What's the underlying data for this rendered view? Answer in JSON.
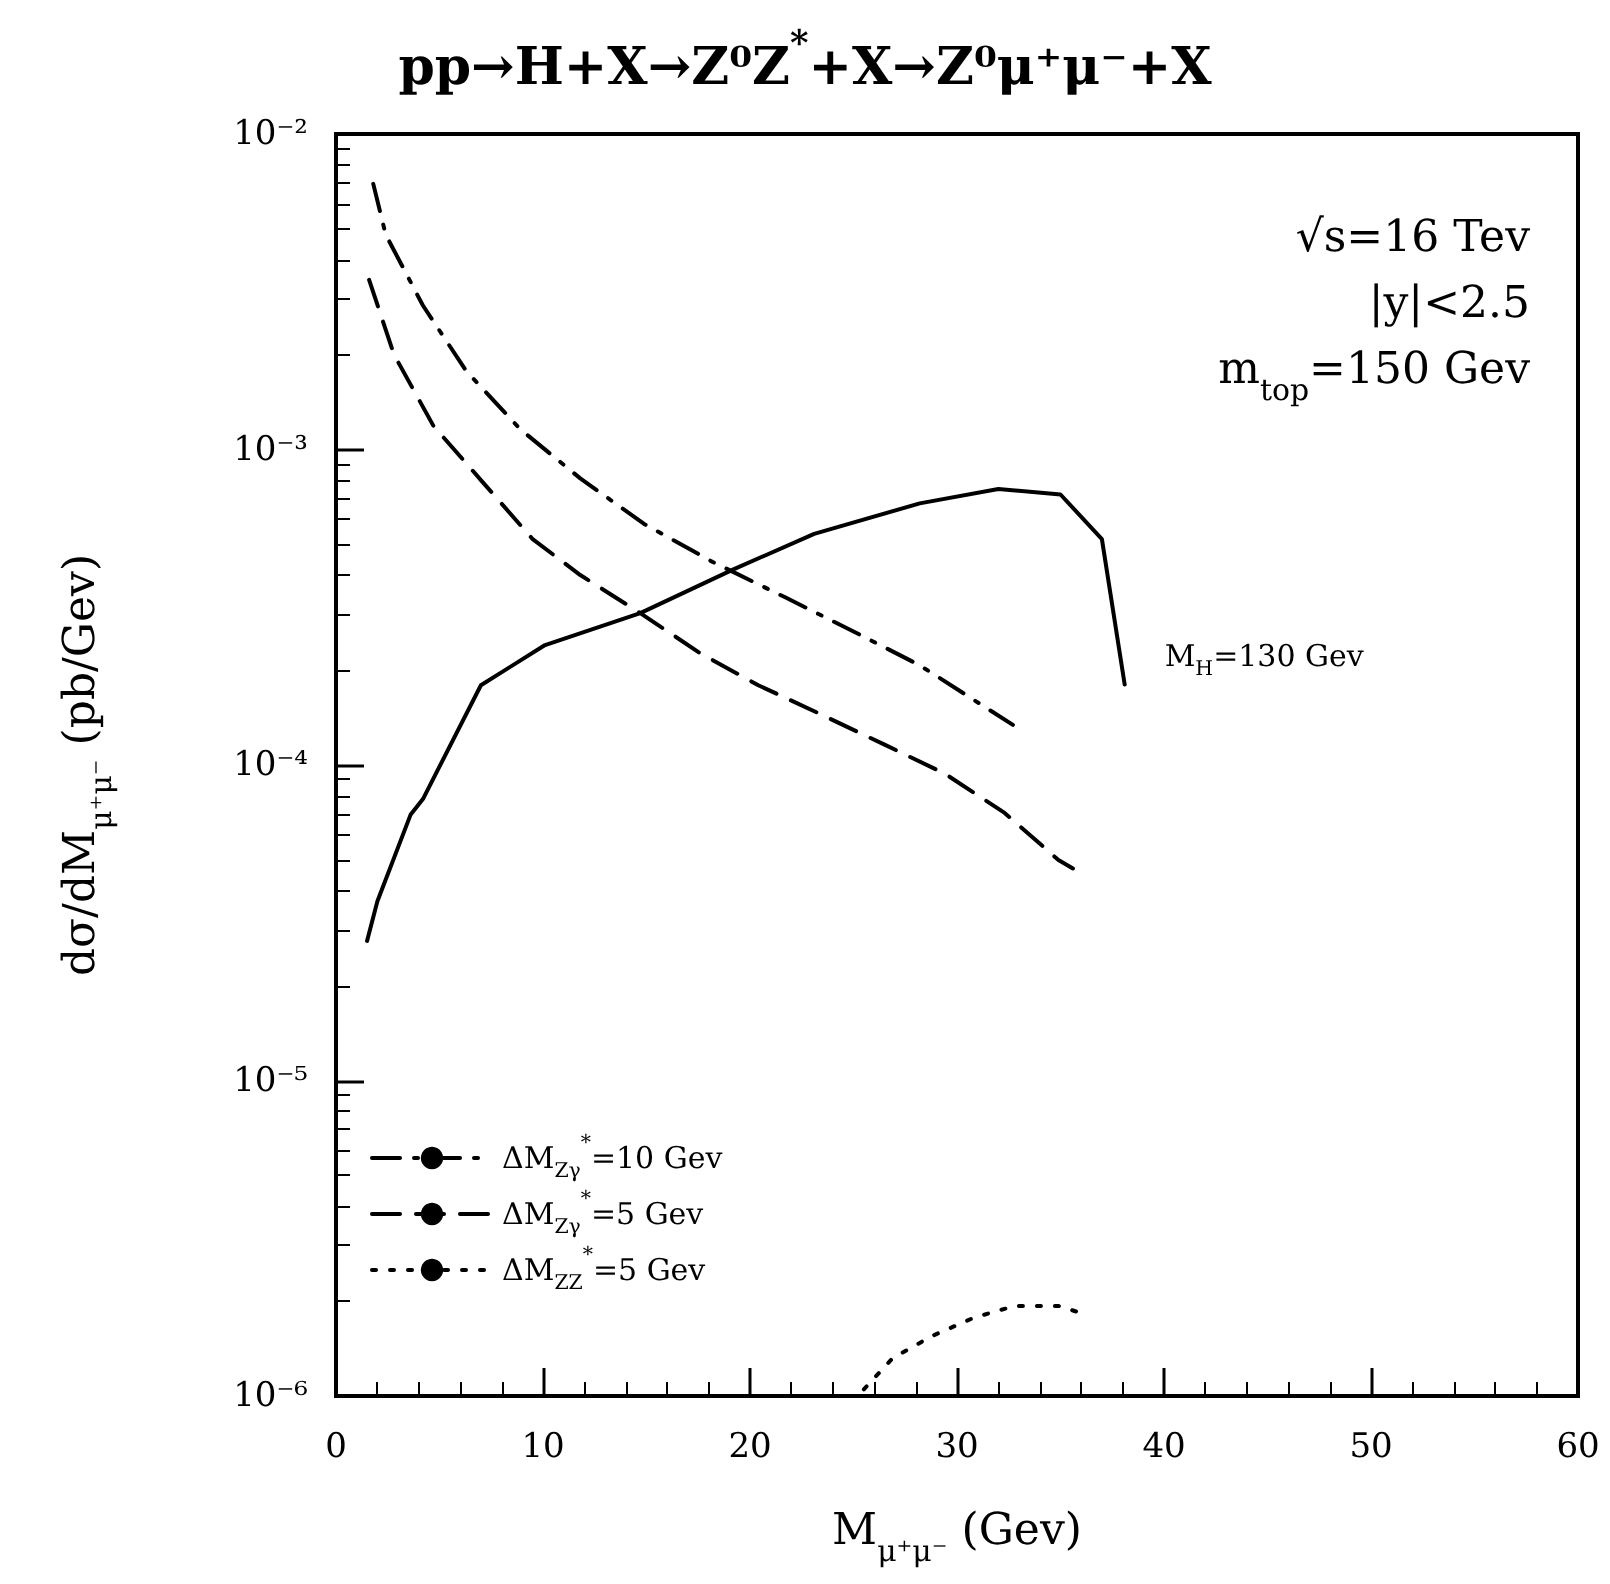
{
  "chart_data": {
    "type": "line",
    "title": "pp→H+X→Z⁰Z$^{*}$+X→Z⁰μ⁺μ⁻+X",
    "xlabel": "M$_{μ⁺μ⁻}$ (Gev)",
    "ylabel": "dσ/dM$_{μ⁺μ⁻}$ (pb/Gev)",
    "annotations": [
      "√s=16 Tev",
      "|y|<2.5",
      "m$_{top}$=150 Gev"
    ],
    "xlim": [
      0,
      60
    ],
    "xticks": [
      0,
      10,
      20,
      30,
      40,
      50,
      60
    ],
    "ylim": [
      1e-06,
      0.01
    ],
    "yticks": [
      {
        "value": 1e-06,
        "label": "10⁻⁶"
      },
      {
        "value": 1e-05,
        "label": "10⁻⁵"
      },
      {
        "value": 0.0001,
        "label": "10⁻⁴"
      },
      {
        "value": 0.001,
        "label": "10⁻³"
      },
      {
        "value": 0.01,
        "label": "10⁻²"
      }
    ],
    "log": "y",
    "grid": false,
    "legend": "bottom left",
    "marker": "none",
    "series": [
      {
        "name": "M$_{H}$=130 Gev",
        "color": "#000000",
        "line_style": "solid",
        "x": [
          1.5,
          2,
          3.6,
          4.2,
          7,
          10.1,
          14.7,
          19.2,
          23.1,
          28.2,
          32,
          35,
          37,
          38.1
        ],
        "values": [
          2.77e-05,
          3.7e-05,
          6.95e-05,
          7.8e-05,
          0.000179,
          0.00024,
          0.000303,
          0.000417,
          0.00054,
          0.000675,
          0.00075,
          0.00072,
          0.00052,
          0.00018
        ]
      },
      {
        "name": "ΔM$_{Zγ}$$^{*}$=10 Gev",
        "color": "#000000",
        "line_style": "dashdot",
        "x": [
          1.8,
          2.4,
          4.2,
          6.3,
          8.9,
          11.8,
          14.9,
          18.2,
          21.7,
          25,
          28.2,
          32.7
        ],
        "values": [
          0.00695,
          0.0048,
          0.00286,
          0.00177,
          0.00116,
          0.00081,
          0.00058,
          0.00044,
          0.00034,
          0.000265,
          0.000207,
          0.000134
        ]
      },
      {
        "name": "ΔM$_{Zγ}$$^{*}$=5 Gev",
        "color": "#000000",
        "line_style": "dashed",
        "x": [
          1.6,
          2.8,
          4.7,
          7,
          9.5,
          11.8,
          14.7,
          17.6,
          20.4,
          23.3,
          26.5,
          29.4,
          32.3,
          34.9,
          35.6
        ],
        "values": [
          0.00345,
          0.002,
          0.00119,
          0.0008,
          0.00052,
          0.0004,
          0.000303,
          0.000226,
          0.000179,
          0.000146,
          0.000116,
          9.4e-05,
          7.05e-05,
          5e-05,
          4.7e-05
        ]
      },
      {
        "name": "ΔM$_{ZZ}$$^{*}$=5 Gev",
        "color": "#000000",
        "line_style": "dotted",
        "x": [
          25.5,
          26.9,
          28.8,
          30.8,
          32.8,
          34.9,
          35.9
        ],
        "values": [
          1.05e-06,
          1.32e-06,
          1.55e-06,
          1.77e-06,
          1.93e-06,
          1.93e-06,
          1.84e-06
        ]
      }
    ]
  }
}
